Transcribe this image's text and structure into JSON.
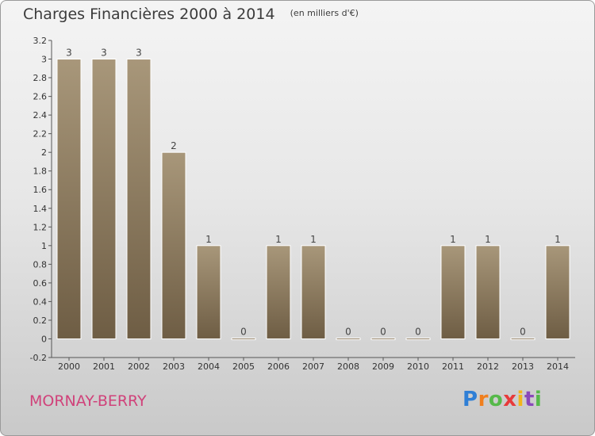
{
  "chart_data": {
    "type": "bar",
    "title": "Charges Financières 2000 à 2014",
    "subtitle": "(en milliers d'€)",
    "categories": [
      "2000",
      "2001",
      "2002",
      "2003",
      "2004",
      "2005",
      "2006",
      "2007",
      "2008",
      "2009",
      "2010",
      "2011",
      "2012",
      "2013",
      "2014"
    ],
    "values": [
      3,
      3,
      3,
      2,
      1,
      0,
      1,
      1,
      0,
      0,
      0,
      1,
      1,
      0,
      1
    ],
    "data_labels": [
      "3",
      "3",
      "3",
      "2",
      "1",
      "0",
      "1",
      "1",
      "0",
      "0",
      "0",
      "1",
      "1",
      "0",
      "1"
    ],
    "ylim": [
      -0.2,
      3.2
    ],
    "yticks": [
      -0.2,
      0,
      0.2,
      0.4,
      0.6,
      0.8,
      1,
      1.2,
      1.4,
      1.6,
      1.8,
      2,
      2.2,
      2.4,
      2.6,
      2.8,
      3,
      3.2
    ],
    "ytick_labels": [
      "-0.2",
      "0",
      "0.2",
      "0.4",
      "0.6",
      "0.8",
      "1",
      "1.2",
      "1.4",
      "1.6",
      "1.8",
      "2",
      "2.2",
      "2.4",
      "2.6",
      "2.8",
      "3",
      "3.2"
    ],
    "grid": false,
    "bar_color": "#9c8a6c",
    "bar_color_dark": "#6e5d44"
  },
  "footer": {
    "commune": "MORNAY-BERRY",
    "commune_color": "#d0427a"
  },
  "logo": {
    "letters": [
      "P",
      "r",
      "o",
      "x",
      "i",
      "t",
      "i"
    ],
    "colors": [
      "#2f7fd6",
      "#f07f1e",
      "#56b94a",
      "#e73a3a",
      "#f2b51b",
      "#8a49b9",
      "#56b94a"
    ]
  }
}
